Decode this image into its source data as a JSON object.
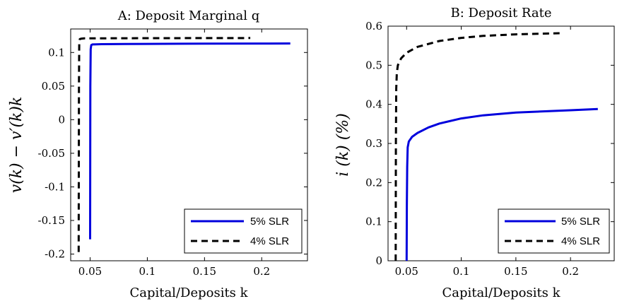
{
  "chart_data": [
    {
      "type": "line",
      "title": "A: Deposit Marginal q",
      "xlabel": "Capital/Deposits k",
      "ylabel": "v(k) − v′(k)k",
      "xlim": [
        0.033,
        0.24
      ],
      "ylim": [
        -0.21,
        0.135
      ],
      "xticks": [
        0.05,
        0.1,
        0.15,
        0.2
      ],
      "xtick_labels": [
        "0.05",
        "0.1",
        "0.15",
        "0.2"
      ],
      "yticks": [
        -0.2,
        -0.15,
        -0.1,
        -0.05,
        0,
        0.05,
        0.1
      ],
      "ytick_labels": [
        "-0.2",
        "-0.15",
        "-0.1",
        "-0.05",
        "0",
        "0.05",
        "0.1"
      ],
      "legend_position": "bottom-right",
      "series": [
        {
          "name": "5% SLR",
          "color": "#0000dd",
          "style": "solid",
          "x": [
            0.05,
            0.0502,
            0.0505,
            0.051,
            0.052,
            0.055,
            0.06,
            0.08,
            0.1,
            0.15,
            0.2,
            0.225
          ],
          "y": [
            -0.178,
            0.05,
            0.105,
            0.111,
            0.112,
            0.1122,
            0.1124,
            0.1126,
            0.1128,
            0.1131,
            0.1133,
            0.1134
          ]
        },
        {
          "name": "4% SLR",
          "color": "#000000",
          "style": "dashed",
          "x": [
            0.04,
            0.0402,
            0.0405,
            0.041,
            0.042,
            0.045,
            0.05,
            0.08,
            0.1,
            0.15,
            0.19
          ],
          "y": [
            -0.197,
            0.05,
            0.114,
            0.12,
            0.1205,
            0.121,
            0.121,
            0.1212,
            0.1213,
            0.1214,
            0.1215
          ]
        }
      ]
    },
    {
      "type": "line",
      "title": "B: Deposit Rate",
      "xlabel": "Capital/Deposits k",
      "ylabel": "i (k) (%)",
      "xlim": [
        0.033,
        0.24
      ],
      "ylim": [
        0,
        0.6
      ],
      "xticks": [
        0.05,
        0.1,
        0.15,
        0.2
      ],
      "xtick_labels": [
        "0.05",
        "0.1",
        "0.15",
        "0.2"
      ],
      "yticks": [
        0,
        0.1,
        0.2,
        0.3,
        0.4,
        0.5,
        0.6
      ],
      "ytick_labels": [
        "0",
        "0.1",
        "0.2",
        "0.3",
        "0.4",
        "0.5",
        "0.6"
      ],
      "legend_position": "bottom-right",
      "series": [
        {
          "name": "5% SLR",
          "color": "#0000dd",
          "style": "solid",
          "x": [
            0.05,
            0.0502,
            0.0505,
            0.051,
            0.052,
            0.055,
            0.06,
            0.07,
            0.08,
            0.1,
            0.12,
            0.15,
            0.2,
            0.225
          ],
          "y": [
            0,
            0.14,
            0.24,
            0.29,
            0.305,
            0.317,
            0.327,
            0.341,
            0.351,
            0.364,
            0.372,
            0.379,
            0.385,
            0.388
          ]
        },
        {
          "name": "4% SLR",
          "color": "#000000",
          "style": "dashed",
          "x": [
            0.04,
            0.0402,
            0.0405,
            0.041,
            0.042,
            0.045,
            0.05,
            0.06,
            0.08,
            0.1,
            0.12,
            0.15,
            0.19
          ],
          "y": [
            0,
            0.3,
            0.44,
            0.48,
            0.5,
            0.518,
            0.532,
            0.547,
            0.562,
            0.57,
            0.575,
            0.579,
            0.582
          ]
        }
      ]
    }
  ]
}
